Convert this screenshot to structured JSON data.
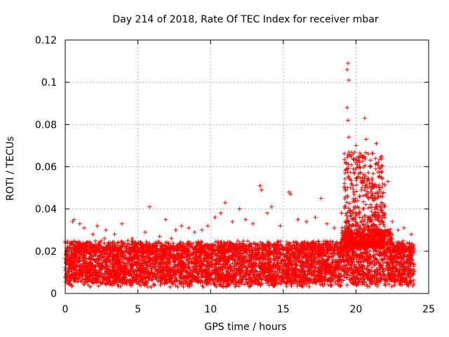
{
  "chart_data": {
    "type": "scatter",
    "title": "Day 214 of 2018, Rate Of TEC Index for receiver mbar",
    "xlabel": "GPS time / hours",
    "ylabel": "ROTI / TECUs",
    "xlim": [
      0,
      25
    ],
    "ylim": [
      0,
      0.12
    ],
    "xticks": [
      0,
      5,
      10,
      15,
      20,
      25
    ],
    "xtick_labels": [
      "0",
      "5",
      "10",
      "15",
      "20",
      "25"
    ],
    "yticks": [
      0,
      0.02,
      0.04,
      0.06,
      0.08,
      0.1,
      0.12
    ],
    "ytick_labels": [
      "0",
      "0.02",
      "0.04",
      "0.06",
      "0.08",
      "0.1",
      "0.12"
    ],
    "grid": true,
    "marker": "+",
    "color": "#ff0000",
    "x_range_of_data": [
      0,
      24
    ],
    "typical_band": [
      0.005,
      0.025
    ],
    "series": [
      {
        "name": "ROTI",
        "points": [
          [
            0.1,
            0.018
          ],
          [
            0.3,
            0.012
          ],
          [
            0.5,
            0.034
          ],
          [
            0.6,
            0.035
          ],
          [
            0.9,
            0.022
          ],
          [
            1.0,
            0.033
          ],
          [
            1.3,
            0.031
          ],
          [
            1.5,
            0.015
          ],
          [
            1.9,
            0.028
          ],
          [
            2.2,
            0.032
          ],
          [
            2.7,
            0.026
          ],
          [
            2.8,
            0.03
          ],
          [
            3.4,
            0.028
          ],
          [
            3.6,
            0.011
          ],
          [
            3.9,
            0.033
          ],
          [
            4.3,
            0.025
          ],
          [
            4.6,
            0.026
          ],
          [
            5.2,
            0.021
          ],
          [
            5.5,
            0.029
          ],
          [
            5.8,
            0.041
          ],
          [
            6.2,
            0.024
          ],
          [
            6.5,
            0.027
          ],
          [
            6.9,
            0.035
          ],
          [
            7.3,
            0.026
          ],
          [
            7.6,
            0.03
          ],
          [
            8.0,
            0.032
          ],
          [
            8.5,
            0.031
          ],
          [
            8.9,
            0.029
          ],
          [
            9.4,
            0.03
          ],
          [
            9.8,
            0.032
          ],
          [
            10.3,
            0.036
          ],
          [
            10.7,
            0.038
          ],
          [
            11.0,
            0.043
          ],
          [
            11.5,
            0.034
          ],
          [
            12.0,
            0.04
          ],
          [
            12.4,
            0.035
          ],
          [
            12.9,
            0.033
          ],
          [
            13.4,
            0.051
          ],
          [
            13.5,
            0.049
          ],
          [
            13.9,
            0.038
          ],
          [
            14.2,
            0.041
          ],
          [
            14.8,
            0.032
          ],
          [
            15.4,
            0.048
          ],
          [
            15.5,
            0.047
          ],
          [
            16.0,
            0.035
          ],
          [
            16.6,
            0.034
          ],
          [
            17.2,
            0.036
          ],
          [
            17.6,
            0.045
          ],
          [
            18.0,
            0.033
          ],
          [
            18.5,
            0.031
          ],
          [
            19.0,
            0.038
          ],
          [
            19.2,
            0.05
          ],
          [
            19.3,
            0.062
          ],
          [
            19.4,
            0.088
          ],
          [
            19.4,
            0.106
          ],
          [
            19.45,
            0.109
          ],
          [
            19.5,
            0.101
          ],
          [
            19.45,
            0.082
          ],
          [
            19.5,
            0.074
          ],
          [
            19.6,
            0.065
          ],
          [
            19.7,
            0.052
          ],
          [
            20.0,
            0.07
          ],
          [
            20.1,
            0.061
          ],
          [
            20.3,
            0.057
          ],
          [
            20.5,
            0.065
          ],
          [
            20.6,
            0.083
          ],
          [
            20.7,
            0.073
          ],
          [
            20.8,
            0.05
          ],
          [
            21.0,
            0.042
          ],
          [
            21.2,
            0.044
          ],
          [
            21.4,
            0.071
          ],
          [
            21.7,
            0.046
          ],
          [
            22.0,
            0.036
          ],
          [
            22.2,
            0.053
          ],
          [
            22.5,
            0.034
          ],
          [
            22.9,
            0.03
          ],
          [
            23.3,
            0.031
          ],
          [
            23.8,
            0.028
          ]
        ]
      }
    ]
  }
}
